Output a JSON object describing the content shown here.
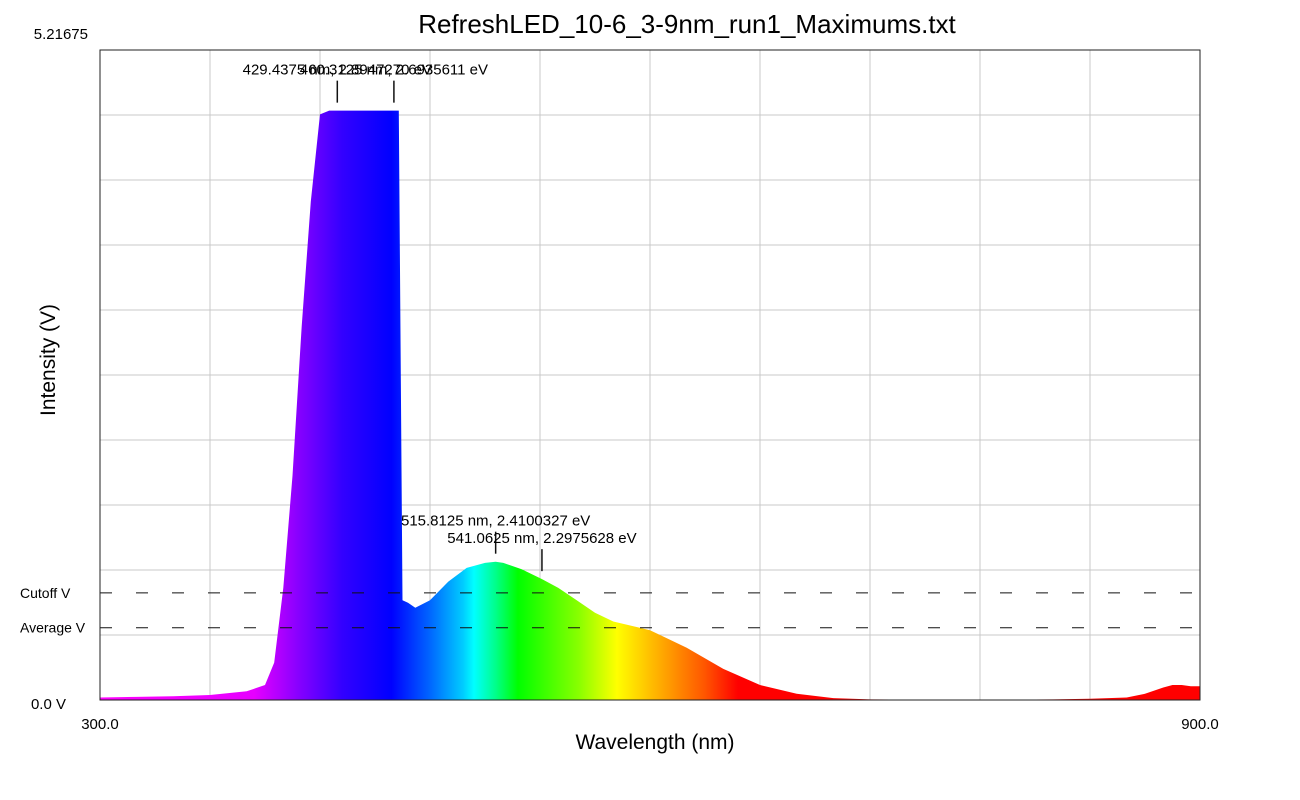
{
  "chart_data": {
    "type": "area",
    "title": "RefreshLED_10-6_3-9nm_run1_Maximums.txt",
    "xlabel": "Wavelength (nm)",
    "ylabel": "Intensity (V)",
    "xlim": [
      300.0,
      900.0
    ],
    "ylim": [
      0.0,
      5.21675
    ],
    "x_tick_labels": [
      "300.0",
      "900.0"
    ],
    "y_tick_labels": [
      "0.0 V",
      "5.21675"
    ],
    "grid": true,
    "fill": "visible-spectrum gradient by wavelength",
    "series": [
      {
        "x": [
          300,
          320,
          340,
          360,
          380,
          390,
          395,
          400,
          405,
          410,
          415,
          420,
          425,
          428,
          429.4,
          440,
          450,
          460.3,
          463,
          465,
          468,
          472,
          480,
          490,
          500,
          510,
          515.8,
          520,
          530,
          541.1,
          550,
          560,
          570,
          580,
          600,
          620,
          640,
          660,
          680,
          700,
          720,
          740,
          760,
          780,
          800,
          820,
          840,
          860,
          870,
          880,
          885,
          890,
          895,
          900
        ],
        "y": [
          0.02,
          0.025,
          0.03,
          0.04,
          0.07,
          0.12,
          0.3,
          0.9,
          1.8,
          3.0,
          4.0,
          4.7,
          4.73,
          4.73,
          4.73,
          4.73,
          4.73,
          4.73,
          4.73,
          0.8,
          0.78,
          0.74,
          0.8,
          0.95,
          1.06,
          1.1,
          1.11,
          1.1,
          1.05,
          0.97,
          0.9,
          0.8,
          0.7,
          0.63,
          0.56,
          0.42,
          0.25,
          0.12,
          0.05,
          0.015,
          0.005,
          0.003,
          0.003,
          0.003,
          0.003,
          0.005,
          0.01,
          0.02,
          0.05,
          0.1,
          0.12,
          0.12,
          0.11,
          0.11
        ]
      }
    ],
    "reference_lines": [
      {
        "label": "Cutoff V",
        "y": 0.86,
        "style": "dashed"
      },
      {
        "label": "Average V",
        "y": 0.58,
        "style": "dashed"
      }
    ],
    "peak_annotations": [
      {
        "x": 429.4375,
        "y": 4.73,
        "text": "429.4375 nm, 2.8947270 eV"
      },
      {
        "x": 460.3125,
        "y": 4.73,
        "text": "460.3125 nm, 2.6935611 eV"
      },
      {
        "x": 515.8125,
        "y": 1.11,
        "text": "515.8125 nm, 2.4100327 eV"
      },
      {
        "x": 541.0625,
        "y": 0.97,
        "text": "541.0625 nm, 2.2975628 eV"
      }
    ]
  }
}
